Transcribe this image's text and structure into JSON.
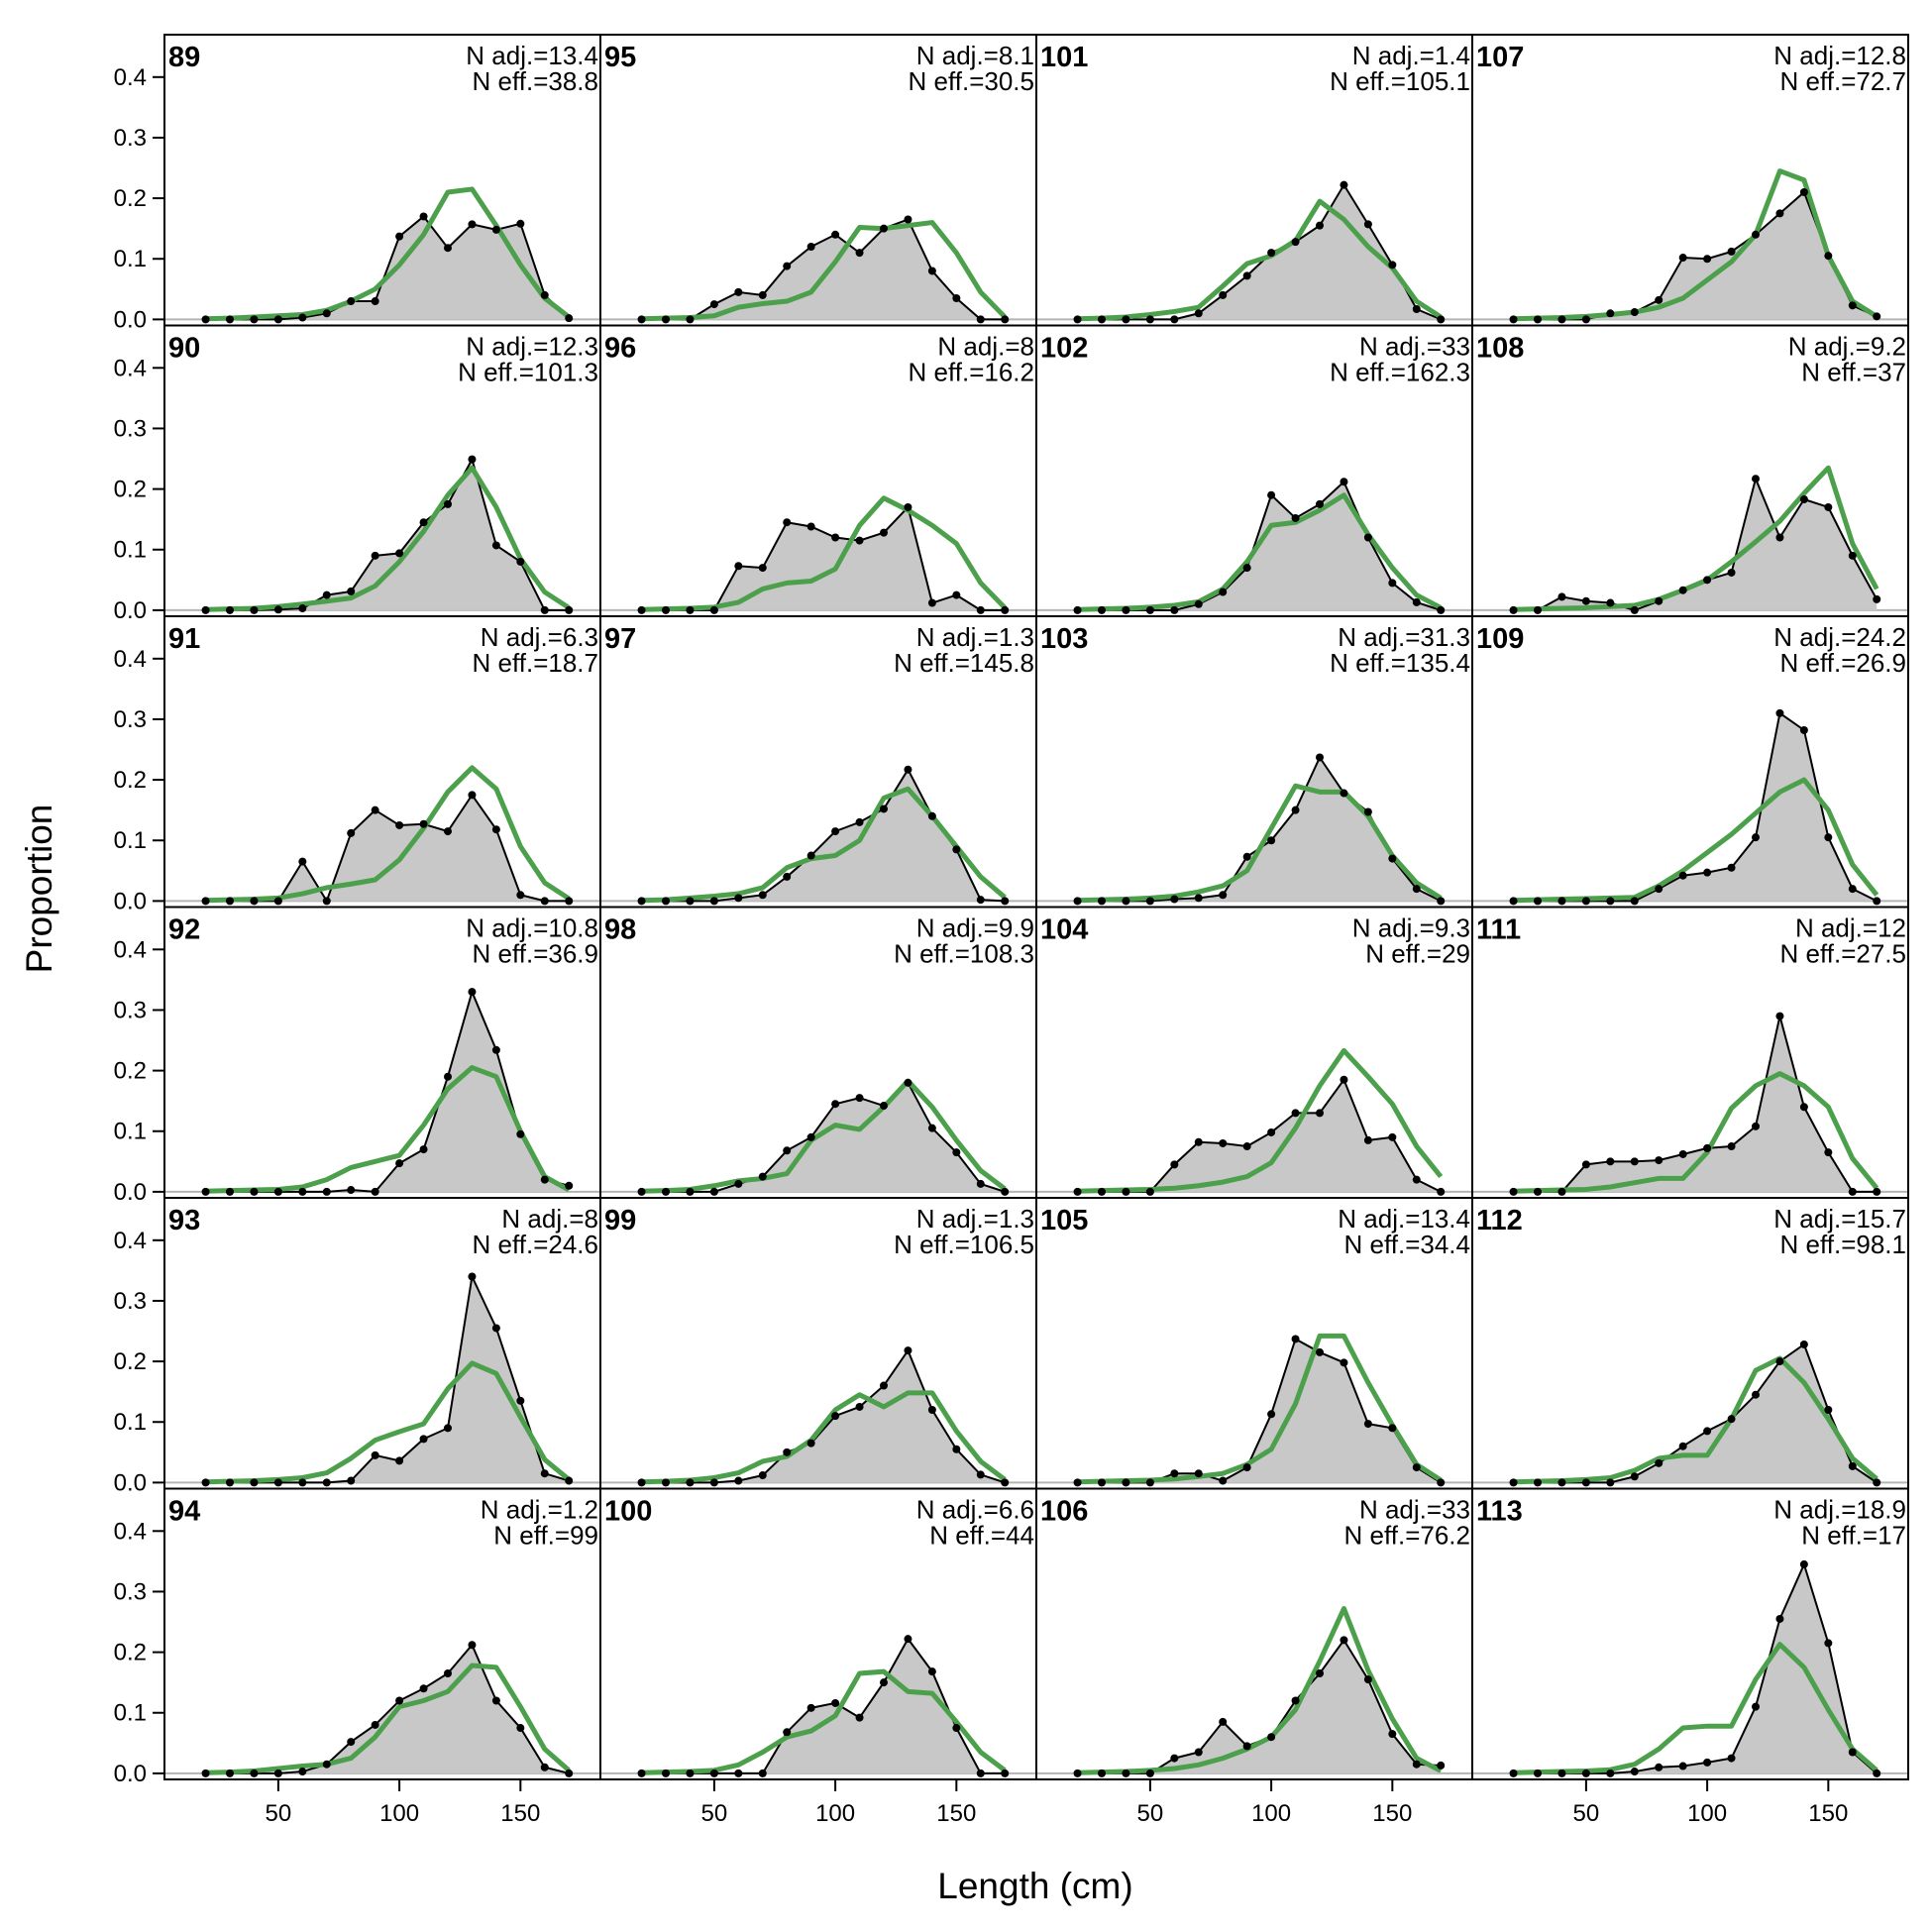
{
  "colors": {
    "observed_fill": "#c8c8c8",
    "observed_line": "#000000",
    "expected_line": "#4ca04c",
    "zero_line": "#b4b4b4"
  },
  "chart_data": {
    "type": "area",
    "xlabel": "Length (cm)",
    "ylabel": "Proportion",
    "xlim": [
      3,
      183
    ],
    "ylim": [
      -0.01,
      0.47
    ],
    "x_ticks": [
      50,
      100,
      150
    ],
    "y_ticks": [
      0.0,
      0.1,
      0.2,
      0.3,
      0.4
    ],
    "x_tick_labels": [
      "50",
      "100",
      "150"
    ],
    "y_tick_labels": [
      "0.0",
      "0.1",
      "0.2",
      "0.3",
      "0.4"
    ],
    "layout": "grid 4 columns x 6 rows, column-major",
    "grid": false,
    "x": [
      20,
      30,
      40,
      50,
      60,
      70,
      80,
      90,
      100,
      110,
      120,
      130,
      140,
      150,
      160,
      170
    ],
    "series_legend": {
      "observed": "black points and line with grey fill",
      "expected": "green line"
    },
    "panels": [
      {
        "label": "89",
        "n_adj_text": "N adj.=13.4",
        "n_eff_text": "N eff.=38.8",
        "observed": [
          0,
          0,
          0,
          0,
          0.003,
          0.01,
          0.03,
          0.03,
          0.137,
          0.17,
          0.118,
          0.157,
          0.148,
          0.158,
          0.04,
          0.002
        ],
        "expected": [
          0.001,
          0.002,
          0.004,
          0.006,
          0.008,
          0.015,
          0.03,
          0.05,
          0.09,
          0.14,
          0.21,
          0.215,
          0.155,
          0.09,
          0.035,
          0.004
        ]
      },
      {
        "label": "90",
        "n_adj_text": "N adj.=12.3",
        "n_eff_text": "N eff.=101.3",
        "observed": [
          0,
          0,
          0,
          0.001,
          0.003,
          0.025,
          0.031,
          0.09,
          0.094,
          0.145,
          0.175,
          0.249,
          0.107,
          0.08,
          0,
          0
        ],
        "expected": [
          0.001,
          0.002,
          0.003,
          0.006,
          0.01,
          0.015,
          0.02,
          0.04,
          0.08,
          0.13,
          0.19,
          0.235,
          0.17,
          0.085,
          0.03,
          0.004
        ]
      },
      {
        "label": "91",
        "n_adj_text": "N adj.=6.3",
        "n_eff_text": "N eff.=18.7",
        "observed": [
          0,
          0,
          0,
          0,
          0.065,
          0,
          0.112,
          0.15,
          0.125,
          0.127,
          0.115,
          0.175,
          0.118,
          0.01,
          0,
          0
        ],
        "expected": [
          0.001,
          0.002,
          0.003,
          0.005,
          0.012,
          0.022,
          0.028,
          0.035,
          0.068,
          0.12,
          0.18,
          0.22,
          0.185,
          0.09,
          0.03,
          0.004
        ]
      },
      {
        "label": "92",
        "n_adj_text": "N adj.=10.8",
        "n_eff_text": "N eff.=36.9",
        "observed": [
          0,
          0,
          0,
          0,
          0,
          0,
          0.003,
          0,
          0.047,
          0.07,
          0.19,
          0.33,
          0.234,
          0.095,
          0.02,
          0.01
        ],
        "expected": [
          0.001,
          0.002,
          0.003,
          0.004,
          0.008,
          0.02,
          0.04,
          0.05,
          0.06,
          0.11,
          0.17,
          0.205,
          0.19,
          0.1,
          0.025,
          0.003
        ]
      },
      {
        "label": "93",
        "n_adj_text": "N adj.=8",
        "n_eff_text": "N eff.=24.6",
        "observed": [
          0,
          0,
          0,
          0,
          0,
          0,
          0.003,
          0.045,
          0.036,
          0.072,
          0.09,
          0.34,
          0.255,
          0.135,
          0.015,
          0.003
        ],
        "expected": [
          0.001,
          0.002,
          0.003,
          0.005,
          0.008,
          0.016,
          0.04,
          0.07,
          0.084,
          0.097,
          0.155,
          0.197,
          0.18,
          0.108,
          0.038,
          0.005
        ]
      },
      {
        "label": "94",
        "n_adj_text": "N adj.=1.2",
        "n_eff_text": "N eff.=99",
        "observed": [
          0,
          0,
          0,
          0,
          0.003,
          0.015,
          0.052,
          0.08,
          0.12,
          0.14,
          0.165,
          0.212,
          0.12,
          0.075,
          0.01,
          0
        ],
        "expected": [
          0.001,
          0.002,
          0.004,
          0.008,
          0.012,
          0.015,
          0.025,
          0.06,
          0.11,
          0.12,
          0.135,
          0.178,
          0.175,
          0.11,
          0.04,
          0.005
        ]
      },
      {
        "label": "95",
        "n_adj_text": "N adj.=8.1",
        "n_eff_text": "N eff.=30.5",
        "observed": [
          0,
          0,
          0,
          0.025,
          0.045,
          0.04,
          0.088,
          0.12,
          0.14,
          0.11,
          0.15,
          0.165,
          0.08,
          0.035,
          0,
          0
        ],
        "expected": [
          0.001,
          0.002,
          0.003,
          0.006,
          0.02,
          0.026,
          0.03,
          0.045,
          0.095,
          0.152,
          0.15,
          0.155,
          0.16,
          0.11,
          0.045,
          0.004
        ]
      },
      {
        "label": "96",
        "n_adj_text": "N adj.=8",
        "n_eff_text": "N eff.=16.2",
        "observed": [
          0,
          0,
          0,
          0,
          0.073,
          0.07,
          0.145,
          0.138,
          0.12,
          0.115,
          0.128,
          0.17,
          0.012,
          0.025,
          0,
          0
        ],
        "expected": [
          0.001,
          0.002,
          0.003,
          0.005,
          0.013,
          0.035,
          0.045,
          0.048,
          0.068,
          0.14,
          0.185,
          0.165,
          0.14,
          0.11,
          0.045,
          0.004
        ]
      },
      {
        "label": "97",
        "n_adj_text": "N adj.=1.3",
        "n_eff_text": "N eff.=145.8",
        "observed": [
          0,
          0,
          0,
          0,
          0.005,
          0.01,
          0.04,
          0.075,
          0.115,
          0.13,
          0.152,
          0.217,
          0.14,
          0.085,
          0.002,
          0
        ],
        "expected": [
          0.001,
          0.002,
          0.005,
          0.008,
          0.012,
          0.022,
          0.055,
          0.07,
          0.075,
          0.1,
          0.17,
          0.185,
          0.14,
          0.09,
          0.04,
          0.006
        ]
      },
      {
        "label": "98",
        "n_adj_text": "N adj.=9.9",
        "n_eff_text": "N eff.=108.3",
        "observed": [
          0,
          0,
          0,
          0,
          0.013,
          0.025,
          0.068,
          0.09,
          0.145,
          0.155,
          0.142,
          0.18,
          0.105,
          0.065,
          0.013,
          0
        ],
        "expected": [
          0.001,
          0.002,
          0.004,
          0.01,
          0.018,
          0.022,
          0.03,
          0.085,
          0.11,
          0.103,
          0.14,
          0.183,
          0.14,
          0.085,
          0.035,
          0.005
        ]
      },
      {
        "label": "99",
        "n_adj_text": "N adj.=1.3",
        "n_eff_text": "N eff.=106.5",
        "observed": [
          0,
          0,
          0,
          0,
          0.003,
          0.012,
          0.05,
          0.065,
          0.11,
          0.125,
          0.16,
          0.218,
          0.12,
          0.055,
          0.013,
          0
        ],
        "expected": [
          0.001,
          0.002,
          0.004,
          0.008,
          0.016,
          0.035,
          0.043,
          0.07,
          0.12,
          0.145,
          0.125,
          0.148,
          0.148,
          0.085,
          0.035,
          0.005
        ]
      },
      {
        "label": "100",
        "n_adj_text": "N adj.=6.6",
        "n_eff_text": "N eff.=44",
        "observed": [
          0,
          0,
          0,
          0,
          0,
          0,
          0.068,
          0.108,
          0.116,
          0.092,
          0.15,
          0.222,
          0.168,
          0.075,
          0,
          0
        ],
        "expected": [
          0.001,
          0.002,
          0.003,
          0.005,
          0.014,
          0.035,
          0.06,
          0.07,
          0.095,
          0.165,
          0.168,
          0.135,
          0.132,
          0.085,
          0.035,
          0.005
        ]
      },
      {
        "label": "101",
        "n_adj_text": "N adj.=1.4",
        "n_eff_text": "N eff.=105.1",
        "observed": [
          0,
          0,
          0,
          0,
          0,
          0.01,
          0.04,
          0.072,
          0.11,
          0.128,
          0.155,
          0.222,
          0.157,
          0.09,
          0.017,
          0
        ],
        "expected": [
          0.001,
          0.002,
          0.004,
          0.008,
          0.013,
          0.02,
          0.055,
          0.092,
          0.105,
          0.13,
          0.195,
          0.165,
          0.12,
          0.085,
          0.03,
          0.004
        ]
      },
      {
        "label": "102",
        "n_adj_text": "N adj.=33",
        "n_eff_text": "N eff.=162.3",
        "observed": [
          0,
          0,
          0,
          0,
          0,
          0.01,
          0.03,
          0.07,
          0.19,
          0.152,
          0.175,
          0.212,
          0.12,
          0.045,
          0.013,
          0
        ],
        "expected": [
          0.001,
          0.002,
          0.003,
          0.005,
          0.008,
          0.014,
          0.035,
          0.08,
          0.14,
          0.145,
          0.165,
          0.19,
          0.125,
          0.07,
          0.025,
          0.004
        ]
      },
      {
        "label": "103",
        "n_adj_text": "N adj.=31.3",
        "n_eff_text": "N eff.=135.4",
        "observed": [
          0,
          0,
          0,
          0,
          0.003,
          0.005,
          0.01,
          0.073,
          0.1,
          0.15,
          0.237,
          0.178,
          0.147,
          0.07,
          0.02,
          0
        ],
        "expected": [
          0.001,
          0.002,
          0.003,
          0.005,
          0.008,
          0.015,
          0.025,
          0.05,
          0.12,
          0.19,
          0.18,
          0.18,
          0.14,
          0.075,
          0.03,
          0.005
        ]
      },
      {
        "label": "104",
        "n_adj_text": "N adj.=9.3",
        "n_eff_text": "N eff.=29",
        "observed": [
          0,
          0,
          0,
          0,
          0.045,
          0.082,
          0.08,
          0.075,
          0.098,
          0.13,
          0.13,
          0.185,
          0.085,
          0.09,
          0.02,
          0
        ],
        "expected": [
          0.001,
          0.002,
          0.003,
          0.004,
          0.006,
          0.01,
          0.016,
          0.025,
          0.048,
          0.105,
          0.175,
          0.233,
          0.19,
          0.145,
          0.075,
          0.025
        ]
      },
      {
        "label": "105",
        "n_adj_text": "N adj.=13.4",
        "n_eff_text": "N eff.=34.4",
        "observed": [
          0,
          0,
          0,
          0,
          0.015,
          0.015,
          0.003,
          0.025,
          0.113,
          0.237,
          0.215,
          0.198,
          0.097,
          0.09,
          0.025,
          0
        ],
        "expected": [
          0.001,
          0.002,
          0.003,
          0.004,
          0.006,
          0.01,
          0.015,
          0.03,
          0.055,
          0.13,
          0.242,
          0.242,
          0.165,
          0.095,
          0.03,
          0.004
        ]
      },
      {
        "label": "106",
        "n_adj_text": "N adj.=33",
        "n_eff_text": "N eff.=76.2",
        "observed": [
          0,
          0,
          0,
          0,
          0.025,
          0.035,
          0.085,
          0.045,
          0.06,
          0.12,
          0.165,
          0.22,
          0.155,
          0.065,
          0.015,
          0.013
        ],
        "expected": [
          0.001,
          0.002,
          0.003,
          0.005,
          0.008,
          0.014,
          0.025,
          0.04,
          0.06,
          0.105,
          0.185,
          0.272,
          0.17,
          0.09,
          0.025,
          0.004
        ]
      },
      {
        "label": "107",
        "n_adj_text": "N adj.=12.8",
        "n_eff_text": "N eff.=72.7",
        "observed": [
          0,
          0,
          0,
          0,
          0.01,
          0.012,
          0.032,
          0.102,
          0.1,
          0.112,
          0.14,
          0.175,
          0.21,
          0.105,
          0.023,
          0.005
        ],
        "expected": [
          0.001,
          0.002,
          0.003,
          0.005,
          0.008,
          0.012,
          0.02,
          0.035,
          0.065,
          0.095,
          0.14,
          0.245,
          0.23,
          0.105,
          0.03,
          0.005
        ]
      },
      {
        "label": "108",
        "n_adj_text": "N adj.=9.2",
        "n_eff_text": "N eff.=37",
        "observed": [
          0,
          0,
          0.022,
          0.015,
          0.012,
          0,
          0.015,
          0.033,
          0.05,
          0.062,
          0.217,
          0.12,
          0.183,
          0.17,
          0.09,
          0.018
        ],
        "expected": [
          0.001,
          0.002,
          0.003,
          0.004,
          0.006,
          0.008,
          0.018,
          0.033,
          0.05,
          0.08,
          0.113,
          0.147,
          0.193,
          0.235,
          0.11,
          0.035
        ]
      },
      {
        "label": "109",
        "n_adj_text": "N adj.=24.2",
        "n_eff_text": "N eff.=26.9",
        "observed": [
          0,
          0,
          0,
          0,
          0,
          0,
          0.02,
          0.042,
          0.047,
          0.055,
          0.105,
          0.31,
          0.282,
          0.105,
          0.02,
          0
        ],
        "expected": [
          0.001,
          0.002,
          0.003,
          0.004,
          0.005,
          0.006,
          0.025,
          0.05,
          0.08,
          0.11,
          0.145,
          0.18,
          0.2,
          0.15,
          0.06,
          0.01
        ]
      },
      {
        "label": "111",
        "n_adj_text": "N adj.=12",
        "n_eff_text": "N eff.=27.5",
        "observed": [
          0,
          0,
          0,
          0.045,
          0.05,
          0.05,
          0.052,
          0.062,
          0.072,
          0.075,
          0.108,
          0.29,
          0.14,
          0.065,
          0,
          0
        ],
        "expected": [
          0.001,
          0.002,
          0.003,
          0.004,
          0.008,
          0.015,
          0.022,
          0.022,
          0.065,
          0.138,
          0.175,
          0.195,
          0.175,
          0.14,
          0.055,
          0.006
        ]
      },
      {
        "label": "112",
        "n_adj_text": "N adj.=15.7",
        "n_eff_text": "N eff.=98.1",
        "observed": [
          0,
          0,
          0,
          0,
          0,
          0.01,
          0.032,
          0.06,
          0.085,
          0.105,
          0.145,
          0.2,
          0.228,
          0.12,
          0.027,
          0
        ],
        "expected": [
          0.001,
          0.002,
          0.003,
          0.005,
          0.008,
          0.02,
          0.04,
          0.045,
          0.045,
          0.105,
          0.185,
          0.205,
          0.165,
          0.105,
          0.04,
          0.006
        ]
      },
      {
        "label": "113",
        "n_adj_text": "N adj.=18.9",
        "n_eff_text": "N eff.=17",
        "observed": [
          0,
          0,
          0,
          0,
          0,
          0.003,
          0.01,
          0.012,
          0.018,
          0.025,
          0.11,
          0.255,
          0.345,
          0.215,
          0.035,
          0
        ],
        "expected": [
          0.001,
          0.002,
          0.003,
          0.004,
          0.006,
          0.015,
          0.04,
          0.075,
          0.078,
          0.078,
          0.155,
          0.213,
          0.175,
          0.105,
          0.04,
          0.005
        ]
      }
    ]
  }
}
